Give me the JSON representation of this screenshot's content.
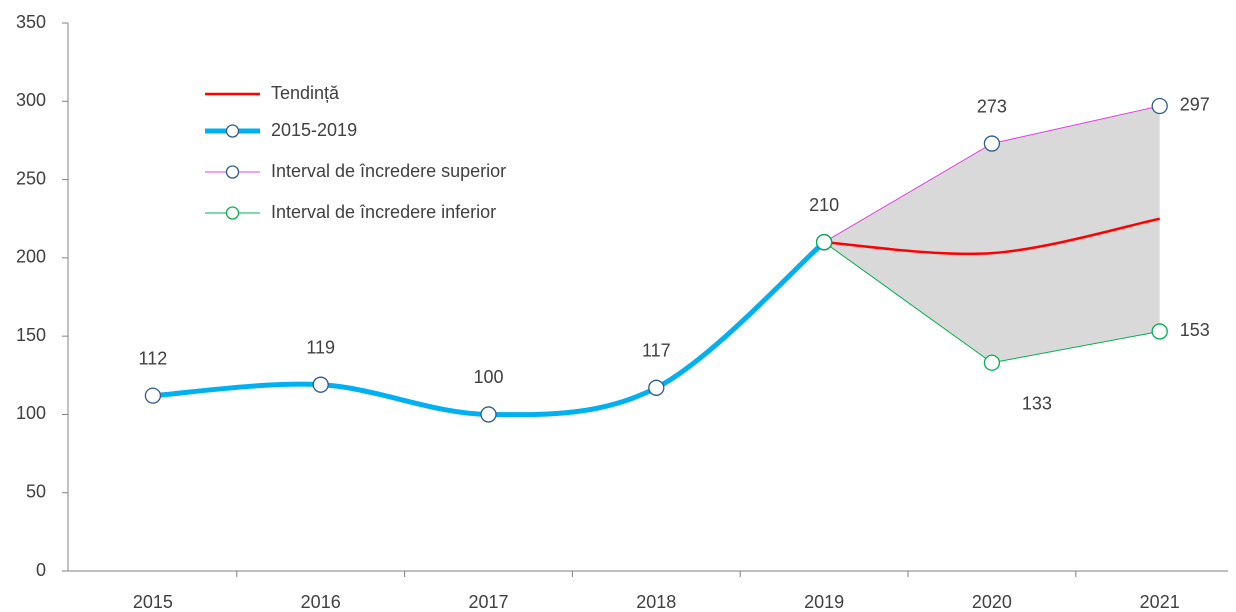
{
  "chart_data": {
    "type": "line",
    "categories": [
      "2015",
      "2016",
      "2017",
      "2018",
      "2019",
      "2020",
      "2021"
    ],
    "series": [
      {
        "name": "Tendință",
        "color": "#ff0000",
        "values": [
          null,
          null,
          null,
          null,
          210,
          203,
          225
        ],
        "markers": false,
        "data_labels": false
      },
      {
        "name": "2015-2019",
        "color": "#00b0f0",
        "values": [
          112,
          119,
          100,
          117,
          210,
          null,
          null
        ],
        "markers": true,
        "marker_edge": "#2e5c8a",
        "data_labels": true
      },
      {
        "name": "Interval de încredere superior",
        "color": "#e040e0",
        "values": [
          null,
          null,
          null,
          null,
          210,
          273,
          297
        ],
        "markers": true,
        "marker_edge": "#2e5c8a",
        "data_labels": true
      },
      {
        "name": "Interval de încredere inferior",
        "color": "#00b050",
        "values": [
          null,
          null,
          null,
          null,
          210,
          133,
          153
        ],
        "markers": true,
        "marker_edge": "#00b050",
        "data_labels": true
      }
    ],
    "band_fill": "#d9d9d9",
    "ylim": [
      0,
      350
    ],
    "yticks": [
      0,
      50,
      100,
      150,
      200,
      250,
      300,
      350
    ],
    "grid": false,
    "legend": "upper left"
  }
}
